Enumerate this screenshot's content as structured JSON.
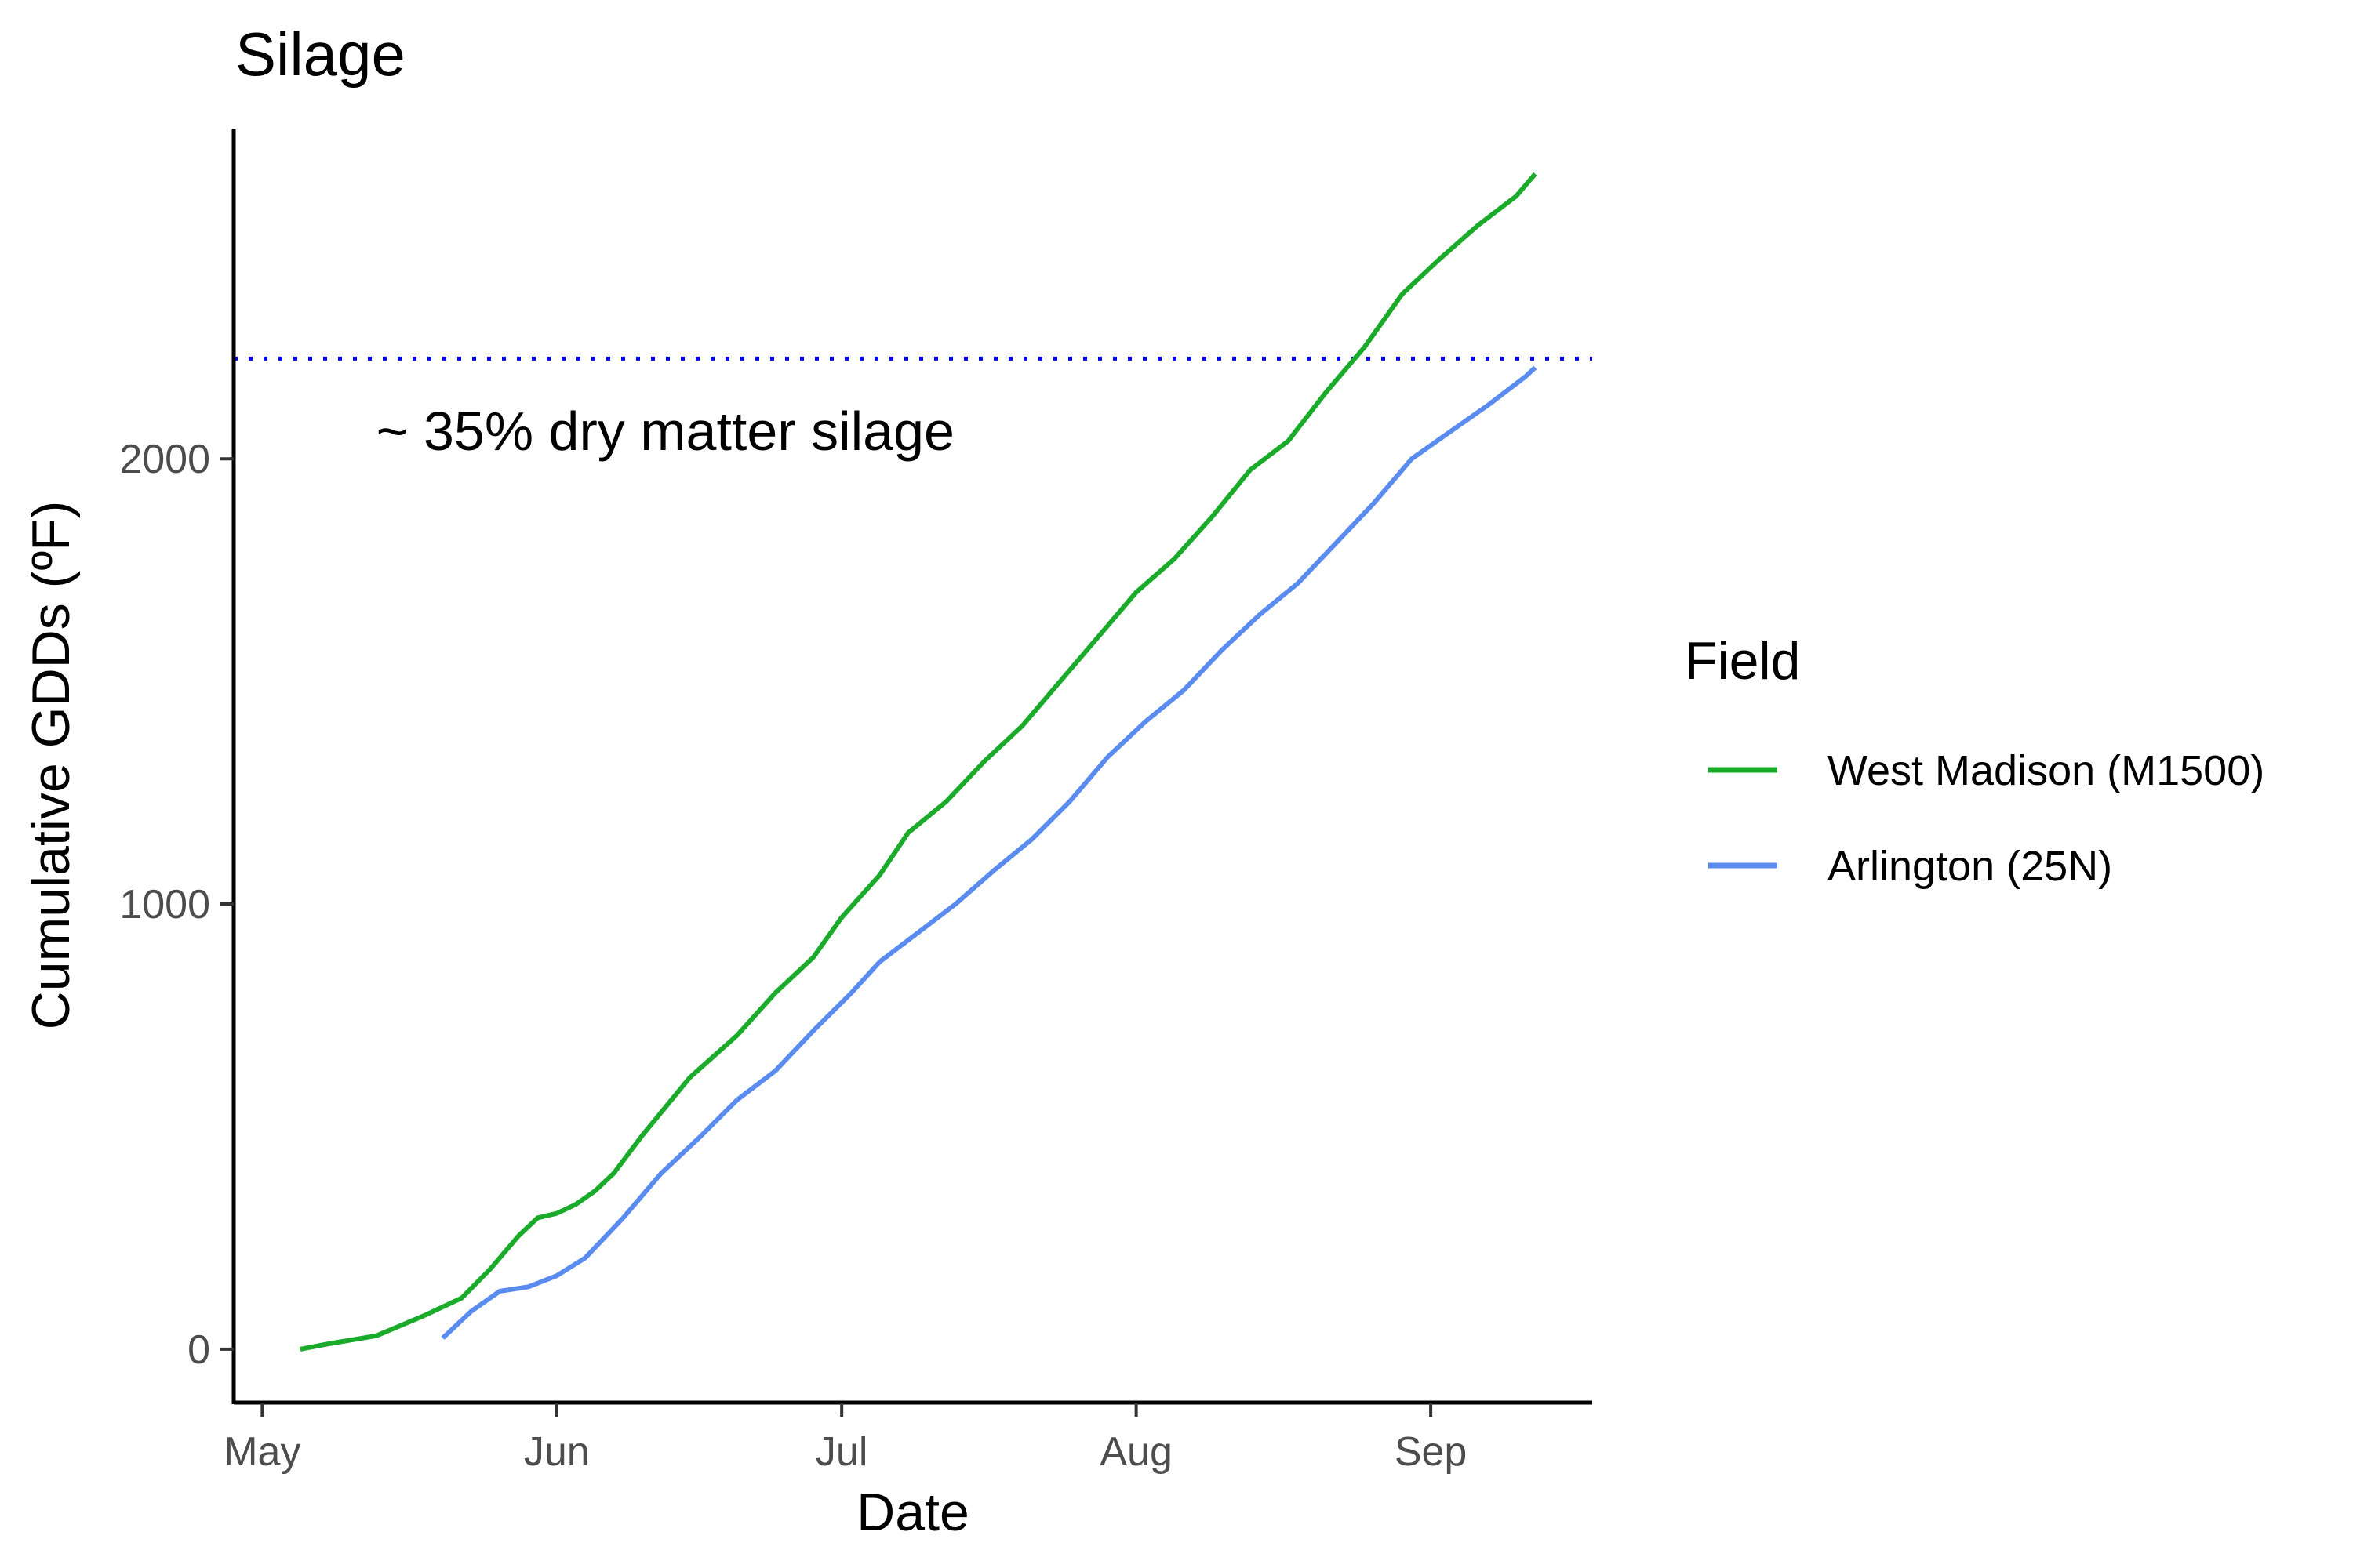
{
  "chart_data": {
    "type": "line",
    "title": "Silage",
    "xlabel": "Date",
    "ylabel": "Cumulative GDDs (ºF)",
    "x_ticks": [
      {
        "date": "2020-05-01",
        "label": "May"
      },
      {
        "date": "2020-06-01",
        "label": "Jun"
      },
      {
        "date": "2020-07-01",
        "label": "Jul"
      },
      {
        "date": "2020-08-01",
        "label": "Aug"
      },
      {
        "date": "2020-09-01",
        "label": "Sep"
      }
    ],
    "y_ticks": [
      0,
      1000,
      2000
    ],
    "xlim": [
      "2020-04-28",
      "2020-09-18"
    ],
    "ylim": [
      -120,
      2740
    ],
    "grid": false,
    "legend": {
      "title": "Field",
      "position": "right"
    },
    "reference_line": {
      "y": 2225,
      "style": "dotted",
      "color": "#0000ff",
      "label": "~ 35% dry matter silage",
      "label_x": "2020-05-13",
      "label_y": 2020
    },
    "series": [
      {
        "name": "West Madison (M1500)",
        "color": "#1aab2b",
        "points": [
          [
            "2020-05-05",
            0
          ],
          [
            "2020-05-08",
            12
          ],
          [
            "2020-05-13",
            30
          ],
          [
            "2020-05-18",
            75
          ],
          [
            "2020-05-22",
            115
          ],
          [
            "2020-05-25",
            180
          ],
          [
            "2020-05-28",
            255
          ],
          [
            "2020-05-30",
            295
          ],
          [
            "2020-06-01",
            305
          ],
          [
            "2020-06-03",
            325
          ],
          [
            "2020-06-05",
            355
          ],
          [
            "2020-06-07",
            395
          ],
          [
            "2020-06-10",
            480
          ],
          [
            "2020-06-15",
            610
          ],
          [
            "2020-06-20",
            705
          ],
          [
            "2020-06-24",
            800
          ],
          [
            "2020-06-28",
            880
          ],
          [
            "2020-07-01",
            970
          ],
          [
            "2020-07-05",
            1065
          ],
          [
            "2020-07-08",
            1160
          ],
          [
            "2020-07-12",
            1230
          ],
          [
            "2020-07-16",
            1320
          ],
          [
            "2020-07-20",
            1400
          ],
          [
            "2020-07-24",
            1500
          ],
          [
            "2020-07-28",
            1600
          ],
          [
            "2020-08-01",
            1700
          ],
          [
            "2020-08-05",
            1775
          ],
          [
            "2020-08-09",
            1870
          ],
          [
            "2020-08-13",
            1975
          ],
          [
            "2020-08-17",
            2040
          ],
          [
            "2020-08-21",
            2150
          ],
          [
            "2020-08-25",
            2250
          ],
          [
            "2020-08-29",
            2370
          ],
          [
            "2020-09-02",
            2450
          ],
          [
            "2020-09-06",
            2525
          ],
          [
            "2020-09-10",
            2590
          ],
          [
            "2020-09-12",
            2640
          ]
        ]
      },
      {
        "name": "Arlington (25N)",
        "color": "#5a8cf0",
        "points": [
          [
            "2020-05-20",
            25
          ],
          [
            "2020-05-23",
            85
          ],
          [
            "2020-05-26",
            130
          ],
          [
            "2020-05-29",
            140
          ],
          [
            "2020-06-01",
            165
          ],
          [
            "2020-06-04",
            205
          ],
          [
            "2020-06-08",
            295
          ],
          [
            "2020-06-12",
            395
          ],
          [
            "2020-06-16",
            475
          ],
          [
            "2020-06-20",
            560
          ],
          [
            "2020-06-24",
            625
          ],
          [
            "2020-06-28",
            715
          ],
          [
            "2020-07-02",
            800
          ],
          [
            "2020-07-05",
            870
          ],
          [
            "2020-07-09",
            935
          ],
          [
            "2020-07-13",
            1000
          ],
          [
            "2020-07-17",
            1075
          ],
          [
            "2020-07-21",
            1145
          ],
          [
            "2020-07-25",
            1230
          ],
          [
            "2020-07-29",
            1330
          ],
          [
            "2020-08-02",
            1410
          ],
          [
            "2020-08-06",
            1480
          ],
          [
            "2020-08-10",
            1570
          ],
          [
            "2020-08-14",
            1650
          ],
          [
            "2020-08-18",
            1720
          ],
          [
            "2020-08-22",
            1810
          ],
          [
            "2020-08-26",
            1900
          ],
          [
            "2020-08-30",
            2000
          ],
          [
            "2020-09-03",
            2060
          ],
          [
            "2020-09-07",
            2120
          ],
          [
            "2020-09-11",
            2185
          ],
          [
            "2020-09-12",
            2205
          ]
        ]
      }
    ]
  }
}
